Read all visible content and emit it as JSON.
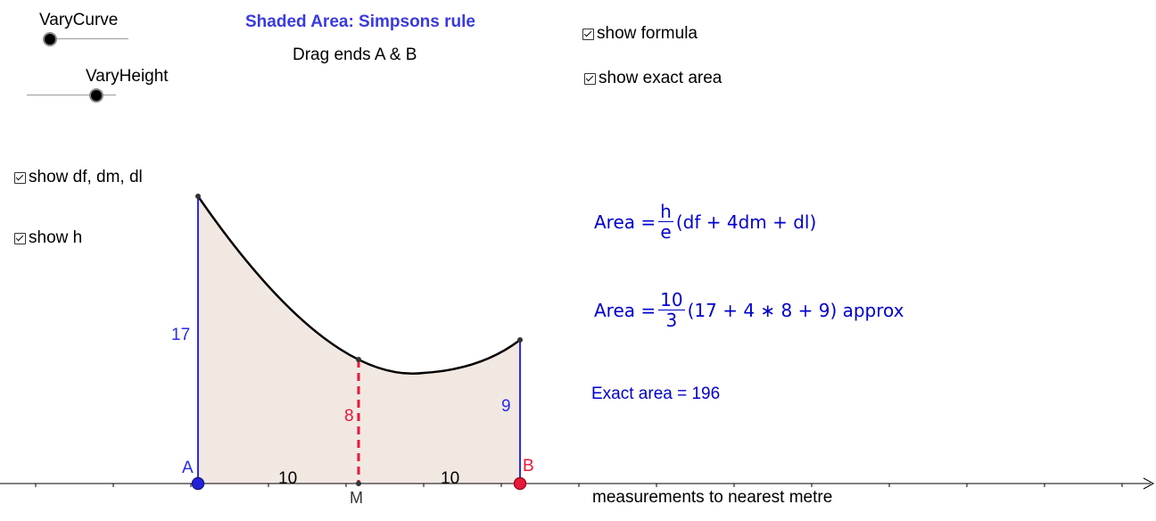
{
  "title": "Shaded Area: Simpsons rule",
  "subtitle": "Drag ends A & B",
  "sliders": {
    "vary_curve": {
      "label": "VaryCurve",
      "value": 0.1
    },
    "vary_height": {
      "label": "VaryHeight",
      "value": 0.9
    }
  },
  "checkboxes": {
    "show_formula": {
      "label": "show formula",
      "checked": true
    },
    "show_exact_area": {
      "label": "show exact area",
      "checked": true
    },
    "show_df_dm_dl": {
      "label": "show df, dm, dl",
      "checked": true
    },
    "show_h": {
      "label": "show h",
      "checked": true
    }
  },
  "formula": {
    "lhs": "Area =",
    "frac_num": "h",
    "frac_den": "e",
    "rhs": "(df + 4dm + dl)"
  },
  "approx": {
    "lhs": "Area =",
    "frac_num": "10",
    "frac_den": "3",
    "rhs": "(17 + 4 ∗ 8 + 9) approx"
  },
  "exact_area_text": "Exact area = 196",
  "note": "measurements to nearest metre",
  "diagram": {
    "point_a": "A",
    "point_b": "B",
    "point_m": "M",
    "df": "17",
    "dm": "8",
    "dl": "9",
    "h_left": "10",
    "h_right": "10"
  },
  "colors": {
    "title": "#3a3ae0",
    "formula": "#0000cc",
    "blue_line": "#2a2af0",
    "red": "#e8183a",
    "shade": "#f2e8e2"
  }
}
